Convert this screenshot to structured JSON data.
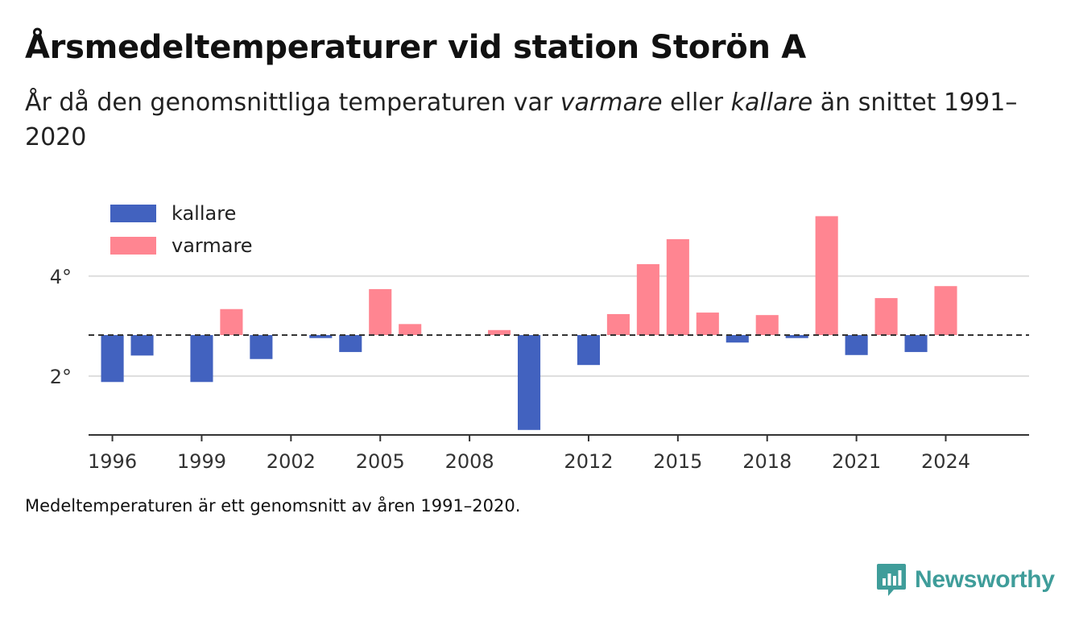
{
  "title": "Årsmedeltemperaturer vid station Storön A",
  "subtitle": {
    "part1": "År då den genomsnittliga temperaturen var ",
    "warm_word": "varmare",
    "part2": " eller ",
    "cold_word": "kallare",
    "part3": " än snittet 1991–2020"
  },
  "note": "Medeltemperaturen är ett genomsnitt av åren 1991–2020.",
  "brand": "Newsworthy",
  "colors": {
    "kallare": "#4262bf",
    "varmare": "#ff8591",
    "baseline": "#333333",
    "grid": "#dddddd",
    "axis": "#333333",
    "brand": "#3f9d9a"
  },
  "chart_data": {
    "type": "bar",
    "baseline": 2.82,
    "years": [
      1996,
      1997,
      1998,
      1999,
      2000,
      2001,
      2002,
      2003,
      2004,
      2005,
      2006,
      2007,
      2008,
      2009,
      2010,
      2011,
      2012,
      2013,
      2014,
      2015,
      2016,
      2017,
      2018,
      2019,
      2020,
      2021,
      2022,
      2023,
      2024
    ],
    "values": [
      1.88,
      2.41,
      null,
      1.88,
      3.34,
      2.34,
      null,
      2.76,
      2.48,
      3.74,
      3.04,
      null,
      null,
      2.92,
      0.92,
      null,
      2.22,
      3.24,
      4.24,
      4.74,
      3.27,
      2.67,
      3.22,
      2.76,
      5.2,
      2.42,
      3.56,
      2.48,
      3.8
    ],
    "x_ticks": [
      1996,
      1999,
      2002,
      2005,
      2008,
      2012,
      2015,
      2018,
      2021,
      2024
    ],
    "y_ticks": [
      {
        "value": 2,
        "label": "2°"
      },
      {
        "value": 4,
        "label": "4°"
      }
    ],
    "ylim": [
      0.82,
      5.4
    ],
    "xlim": [
      1995.2,
      2026.8
    ],
    "grid": true,
    "legend_position": "top-left",
    "legend": [
      {
        "key": "kallare",
        "label": "kallare"
      },
      {
        "key": "varmare",
        "label": "varmare"
      }
    ]
  }
}
